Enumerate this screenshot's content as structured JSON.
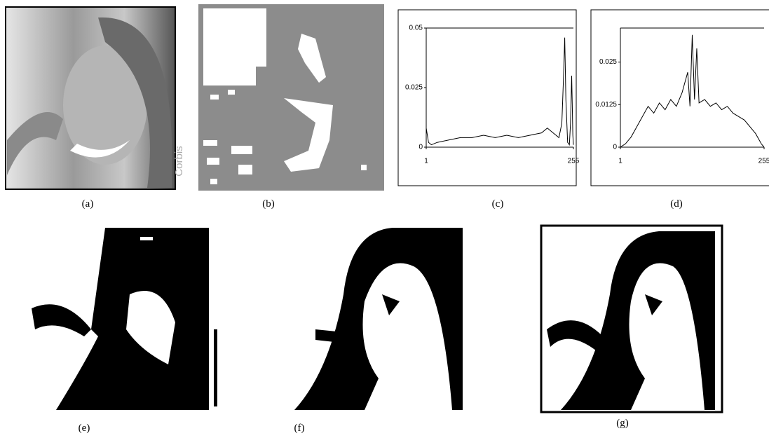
{
  "figure": {
    "panel_labels": [
      "(a)",
      "(b)",
      "(c)",
      "(d)",
      "(e)",
      "(f)",
      "(g)"
    ],
    "watermark": "Corbis",
    "chart_data": [
      {
        "type": "line",
        "color": "#000",
        "xlim": [
          1,
          255
        ],
        "xticks": [
          1,
          255
        ],
        "ylim": [
          0,
          0.05
        ],
        "yticks": [
          0,
          0.025,
          0.05
        ],
        "x": [
          1,
          5,
          10,
          20,
          40,
          60,
          80,
          100,
          120,
          140,
          160,
          180,
          200,
          210,
          220,
          225,
          230,
          235,
          238,
          240,
          242,
          245,
          248,
          250,
          252,
          254,
          255
        ],
        "values": [
          0.008,
          0.002,
          0.001,
          0.002,
          0.003,
          0.004,
          0.004,
          0.005,
          0.004,
          0.005,
          0.004,
          0.005,
          0.006,
          0.008,
          0.006,
          0.005,
          0.004,
          0.01,
          0.03,
          0.046,
          0.02,
          0.002,
          0.001,
          0.01,
          0.03,
          0.005,
          0.001
        ]
      },
      {
        "type": "line",
        "color": "#000",
        "xlim": [
          1,
          255
        ],
        "xticks": [
          1,
          255
        ],
        "ylim": [
          0,
          0.035
        ],
        "yticks": [
          0,
          0.0125,
          0.025
        ],
        "x": [
          1,
          10,
          20,
          30,
          40,
          50,
          60,
          70,
          80,
          90,
          100,
          110,
          120,
          124,
          128,
          132,
          136,
          140,
          150,
          160,
          170,
          180,
          190,
          200,
          210,
          220,
          230,
          240,
          250,
          255
        ],
        "values": [
          0,
          0.001,
          0.003,
          0.006,
          0.009,
          0.012,
          0.01,
          0.013,
          0.011,
          0.014,
          0.012,
          0.016,
          0.022,
          0.012,
          0.033,
          0.014,
          0.029,
          0.013,
          0.014,
          0.012,
          0.013,
          0.011,
          0.012,
          0.01,
          0.009,
          0.008,
          0.006,
          0.004,
          0.001,
          0
        ]
      }
    ]
  }
}
